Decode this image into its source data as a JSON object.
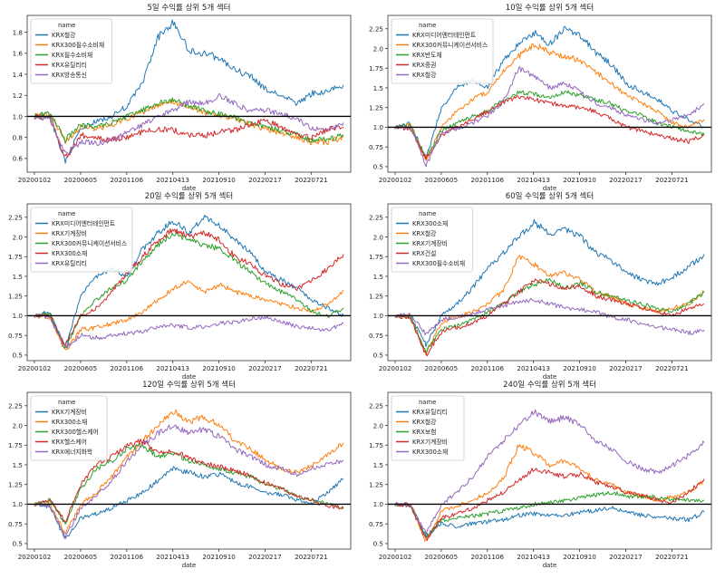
{
  "chart_data": [
    {
      "type": "line",
      "title": "5일 수익률 상위 5개 섹터",
      "xlabel": "date",
      "ylabel": "",
      "x_ticks": [
        "20200102",
        "20200605",
        "20201106",
        "20210413",
        "20210910",
        "20220217",
        "20220721"
      ],
      "y_ticks": [
        0.6,
        0.8,
        1.0,
        1.2,
        1.4,
        1.6,
        1.8
      ],
      "ylim": [
        0.47,
        1.96
      ],
      "reference_line": 1.0,
      "legend_title": "name",
      "legend_position": "top-left",
      "series": [
        {
          "name": "KRX철강",
          "color": "#1f77b4",
          "values": [
            1.0,
            1.0,
            0.57,
            0.88,
            0.95,
            1.0,
            1.1,
            1.32,
            1.75,
            1.9,
            1.62,
            1.6,
            1.55,
            1.44,
            1.38,
            1.25,
            1.2,
            1.12,
            1.22,
            1.24,
            1.3
          ]
        },
        {
          "name": "KRX300필수소비재",
          "color": "#ff7f0e",
          "values": [
            1.0,
            1.02,
            0.76,
            0.9,
            0.88,
            0.92,
            0.98,
            1.04,
            1.1,
            1.14,
            1.08,
            1.04,
            1.0,
            0.98,
            0.92,
            0.88,
            0.84,
            0.8,
            0.75,
            0.76,
            0.8
          ]
        },
        {
          "name": "KRX필수소비재",
          "color": "#2ca02c",
          "values": [
            1.0,
            1.03,
            0.78,
            0.92,
            0.9,
            0.94,
            1.0,
            1.06,
            1.12,
            1.16,
            1.1,
            1.05,
            1.02,
            0.99,
            0.93,
            0.9,
            0.86,
            0.82,
            0.77,
            0.78,
            0.82
          ]
        },
        {
          "name": "KRX유틸리티",
          "color": "#d62728",
          "values": [
            1.0,
            0.98,
            0.6,
            0.82,
            0.79,
            0.78,
            0.8,
            0.85,
            0.88,
            0.87,
            0.82,
            0.82,
            0.85,
            0.87,
            0.93,
            0.96,
            0.9,
            0.82,
            0.8,
            0.88,
            0.9
          ]
        },
        {
          "name": "KRX방송통신",
          "color": "#9467bd",
          "values": [
            1.0,
            0.98,
            0.64,
            0.76,
            0.74,
            0.78,
            0.84,
            0.92,
            1.0,
            1.06,
            1.14,
            1.12,
            1.2,
            1.12,
            1.05,
            1.06,
            1.02,
            0.98,
            0.88,
            0.86,
            0.94
          ]
        }
      ]
    },
    {
      "type": "line",
      "title": "10일 수익률 상위 5개 섹터",
      "xlabel": "date",
      "ylabel": "",
      "x_ticks": [
        "20200102",
        "20200605",
        "20201106",
        "20210413",
        "20210910",
        "20220217",
        "20220721"
      ],
      "y_ticks": [
        0.5,
        0.75,
        1.0,
        1.25,
        1.5,
        1.75,
        2.0,
        2.25
      ],
      "ylim": [
        0.43,
        2.42
      ],
      "reference_line": 1.0,
      "legend_title": "name",
      "legend_position": "top-left",
      "series": [
        {
          "name": "KRX미디어엔터테인먼트",
          "color": "#1f77b4",
          "values": [
            1.0,
            1.05,
            0.6,
            1.25,
            1.5,
            1.6,
            1.5,
            1.85,
            2.05,
            2.2,
            2.05,
            2.25,
            2.15,
            1.95,
            1.8,
            1.55,
            1.45,
            1.35,
            1.2,
            1.1,
            1.0
          ]
        },
        {
          "name": "KRX300커뮤니케이션서비스",
          "color": "#ff7f0e",
          "values": [
            1.0,
            1.03,
            0.58,
            1.0,
            1.2,
            1.35,
            1.45,
            1.7,
            1.9,
            2.05,
            1.95,
            1.9,
            1.85,
            1.7,
            1.55,
            1.4,
            1.3,
            1.2,
            1.05,
            1.0,
            1.1
          ]
        },
        {
          "name": "KRX반도체",
          "color": "#2ca02c",
          "values": [
            1.0,
            1.02,
            0.62,
            0.95,
            1.05,
            1.15,
            1.2,
            1.35,
            1.45,
            1.42,
            1.38,
            1.45,
            1.4,
            1.35,
            1.3,
            1.2,
            1.15,
            1.05,
            1.0,
            0.95,
            0.9
          ]
        },
        {
          "name": "KRX증권",
          "color": "#d62728",
          "values": [
            1.0,
            0.98,
            0.6,
            0.9,
            1.0,
            1.1,
            1.2,
            1.32,
            1.38,
            1.35,
            1.3,
            1.28,
            1.25,
            1.2,
            1.1,
            1.0,
            0.95,
            0.9,
            0.85,
            0.82,
            0.9
          ]
        },
        {
          "name": "KRX철강",
          "color": "#9467bd",
          "values": [
            1.0,
            1.0,
            0.52,
            0.92,
            0.98,
            1.05,
            1.15,
            1.32,
            1.75,
            1.65,
            1.5,
            1.55,
            1.45,
            1.3,
            1.25,
            1.15,
            1.1,
            1.05,
            1.1,
            1.15,
            1.3
          ]
        }
      ]
    },
    {
      "type": "line",
      "title": "20일 수익률 상위 5개 섹터",
      "xlabel": "date",
      "ylabel": "",
      "x_ticks": [
        "20200102",
        "20200605",
        "20201106",
        "20210413",
        "20210910",
        "20220217",
        "20220721"
      ],
      "y_ticks": [
        0.5,
        0.75,
        1.0,
        1.25,
        1.5,
        1.75,
        2.0,
        2.25
      ],
      "ylim": [
        0.43,
        2.42
      ],
      "reference_line": 1.0,
      "legend_title": "name",
      "legend_position": "top-left",
      "series": [
        {
          "name": "KRX미디어엔터테인먼트",
          "color": "#1f77b4",
          "values": [
            1.0,
            1.05,
            0.6,
            1.25,
            1.5,
            1.6,
            1.5,
            1.85,
            2.05,
            2.2,
            2.05,
            2.25,
            2.15,
            1.95,
            1.8,
            1.55,
            1.45,
            1.35,
            1.2,
            1.1,
            1.0
          ]
        },
        {
          "name": "KRX기계장비",
          "color": "#ff7f0e",
          "values": [
            1.0,
            0.97,
            0.55,
            0.82,
            0.85,
            0.9,
            0.95,
            1.05,
            1.2,
            1.35,
            1.45,
            1.3,
            1.4,
            1.3,
            1.25,
            1.2,
            1.15,
            1.1,
            1.05,
            1.15,
            1.32
          ]
        },
        {
          "name": "KRX300커뮤니케이션서비스",
          "color": "#2ca02c",
          "values": [
            1.0,
            1.03,
            0.58,
            1.0,
            1.2,
            1.35,
            1.45,
            1.7,
            1.9,
            2.05,
            1.95,
            1.9,
            1.85,
            1.7,
            1.55,
            1.4,
            1.3,
            1.2,
            1.05,
            1.0,
            1.1
          ]
        },
        {
          "name": "KRX300소재",
          "color": "#d62728",
          "values": [
            1.0,
            1.0,
            0.62,
            1.0,
            1.1,
            1.3,
            1.55,
            1.75,
            1.95,
            2.1,
            2.0,
            2.05,
            1.95,
            1.75,
            1.65,
            1.5,
            1.4,
            1.35,
            1.45,
            1.6,
            1.78
          ]
        },
        {
          "name": "KRX유틸리티",
          "color": "#9467bd",
          "values": [
            1.0,
            0.98,
            0.6,
            0.75,
            0.72,
            0.75,
            0.78,
            0.8,
            0.86,
            0.88,
            0.85,
            0.86,
            0.9,
            0.92,
            0.96,
            0.98,
            0.93,
            0.86,
            0.84,
            0.82,
            0.9
          ]
        }
      ]
    },
    {
      "type": "line",
      "title": "60일 수익률 상위 5개 섹터",
      "xlabel": "date",
      "ylabel": "",
      "x_ticks": [
        "20200102",
        "20200605",
        "20201106",
        "20210413",
        "20210910",
        "20220217",
        "20220721"
      ],
      "y_ticks": [
        0.5,
        0.75,
        1.0,
        1.25,
        1.5,
        1.75,
        2.0,
        2.25
      ],
      "ylim": [
        0.43,
        2.42
      ],
      "reference_line": 1.0,
      "legend_title": "name",
      "legend_position": "top-left",
      "series": [
        {
          "name": "KRX300소재",
          "color": "#1f77b4",
          "values": [
            1.0,
            1.0,
            0.62,
            1.0,
            1.15,
            1.35,
            1.6,
            1.8,
            2.0,
            2.18,
            2.05,
            2.1,
            2.0,
            1.8,
            1.7,
            1.55,
            1.45,
            1.4,
            1.5,
            1.62,
            1.78
          ]
        },
        {
          "name": "KRX철강",
          "color": "#ff7f0e",
          "values": [
            1.0,
            1.0,
            0.52,
            0.92,
            0.98,
            1.05,
            1.15,
            1.32,
            1.75,
            1.65,
            1.5,
            1.55,
            1.45,
            1.3,
            1.25,
            1.15,
            1.1,
            1.05,
            1.1,
            1.15,
            1.3
          ]
        },
        {
          "name": "KRX기계장비",
          "color": "#2ca02c",
          "values": [
            1.0,
            0.97,
            0.55,
            0.82,
            0.88,
            0.95,
            1.05,
            1.15,
            1.3,
            1.4,
            1.45,
            1.35,
            1.42,
            1.3,
            1.25,
            1.2,
            1.15,
            1.08,
            1.05,
            1.15,
            1.3
          ]
        },
        {
          "name": "KRX건설",
          "color": "#d62728",
          "values": [
            1.0,
            0.96,
            0.5,
            0.8,
            0.85,
            0.9,
            1.0,
            1.15,
            1.3,
            1.45,
            1.4,
            1.35,
            1.38,
            1.25,
            1.2,
            1.15,
            1.1,
            1.05,
            1.0,
            1.1,
            1.15
          ]
        },
        {
          "name": "KRX300필수소비재",
          "color": "#9467bd",
          "values": [
            1.0,
            1.02,
            0.76,
            0.95,
            0.98,
            1.02,
            1.08,
            1.12,
            1.18,
            1.2,
            1.15,
            1.1,
            1.08,
            1.05,
            0.98,
            0.95,
            0.9,
            0.86,
            0.82,
            0.78,
            0.82
          ]
        }
      ]
    },
    {
      "type": "line",
      "title": "120일 수익률 상위 5개 섹터",
      "xlabel": "date",
      "ylabel": "",
      "x_ticks": [
        "20200102",
        "20200605",
        "20201106",
        "20210413",
        "20210910",
        "20220217",
        "20220721"
      ],
      "y_ticks": [
        0.5,
        0.75,
        1.0,
        1.25,
        1.5,
        1.75,
        2.0,
        2.25
      ],
      "ylim": [
        0.43,
        2.42
      ],
      "reference_line": 1.0,
      "legend_title": "name",
      "legend_position": "top-left",
      "series": [
        {
          "name": "KRX기계장비",
          "color": "#1f77b4",
          "values": [
            1.0,
            0.97,
            0.55,
            0.82,
            0.88,
            0.95,
            1.05,
            1.15,
            1.3,
            1.45,
            1.4,
            1.35,
            1.38,
            1.28,
            1.22,
            1.15,
            1.12,
            1.05,
            1.02,
            1.15,
            1.32
          ]
        },
        {
          "name": "KRX300소재",
          "color": "#ff7f0e",
          "values": [
            1.0,
            1.0,
            0.62,
            1.0,
            1.15,
            1.35,
            1.6,
            1.8,
            2.0,
            2.18,
            2.05,
            2.1,
            2.0,
            1.8,
            1.7,
            1.55,
            1.45,
            1.4,
            1.5,
            1.62,
            1.78
          ]
        },
        {
          "name": "KRX300헬스케어",
          "color": "#2ca02c",
          "values": [
            1.0,
            1.05,
            0.75,
            1.2,
            1.45,
            1.55,
            1.7,
            1.75,
            1.6,
            1.65,
            1.55,
            1.5,
            1.45,
            1.4,
            1.35,
            1.25,
            1.2,
            1.1,
            1.05,
            1.0,
            0.96
          ]
        },
        {
          "name": "KRX헬스케어",
          "color": "#d62728",
          "values": [
            1.0,
            1.06,
            0.78,
            1.25,
            1.5,
            1.6,
            1.75,
            1.8,
            1.65,
            1.68,
            1.58,
            1.52,
            1.48,
            1.42,
            1.36,
            1.26,
            1.2,
            1.1,
            1.04,
            0.98,
            0.95
          ]
        },
        {
          "name": "KRX에너지화학",
          "color": "#9467bd",
          "values": [
            1.0,
            0.98,
            0.58,
            0.95,
            1.1,
            1.3,
            1.55,
            1.75,
            1.9,
            2.0,
            1.9,
            1.95,
            1.85,
            1.7,
            1.6,
            1.5,
            1.45,
            1.38,
            1.45,
            1.5,
            1.55
          ]
        }
      ]
    },
    {
      "type": "line",
      "title": "240일 수익률 상위 5개 섹터",
      "xlabel": "date",
      "ylabel": "",
      "x_ticks": [
        "20200102",
        "20200605",
        "20201106",
        "20210413",
        "20210910",
        "20220217",
        "20220721"
      ],
      "y_ticks": [
        0.5,
        0.75,
        1.0,
        1.25,
        1.5,
        1.75,
        2.0,
        2.25
      ],
      "ylim": [
        0.43,
        2.42
      ],
      "reference_line": 1.0,
      "legend_title": "name",
      "legend_position": "top-left",
      "series": [
        {
          "name": "KRX유틸리티",
          "color": "#1f77b4",
          "values": [
            1.0,
            0.98,
            0.6,
            0.75,
            0.72,
            0.75,
            0.78,
            0.8,
            0.86,
            0.88,
            0.85,
            0.86,
            0.9,
            0.92,
            0.96,
            0.9,
            0.86,
            0.84,
            0.82,
            0.8,
            0.9
          ]
        },
        {
          "name": "KRX철강",
          "color": "#ff7f0e",
          "values": [
            1.0,
            1.0,
            0.52,
            0.92,
            0.98,
            1.05,
            1.15,
            1.32,
            1.75,
            1.65,
            1.5,
            1.55,
            1.45,
            1.3,
            1.25,
            1.15,
            1.1,
            1.05,
            1.1,
            1.15,
            1.3
          ]
        },
        {
          "name": "KRX보험",
          "color": "#2ca02c",
          "values": [
            1.0,
            0.98,
            0.58,
            0.8,
            0.82,
            0.85,
            0.88,
            0.92,
            0.95,
            1.0,
            1.02,
            1.05,
            1.08,
            1.12,
            1.15,
            1.1,
            1.1,
            1.08,
            1.06,
            1.05,
            1.05
          ]
        },
        {
          "name": "KRX기계장비",
          "color": "#d62728",
          "values": [
            1.0,
            0.97,
            0.55,
            0.82,
            0.88,
            0.95,
            1.05,
            1.15,
            1.3,
            1.45,
            1.4,
            1.35,
            1.38,
            1.28,
            1.22,
            1.15,
            1.12,
            1.05,
            1.02,
            1.15,
            1.32
          ]
        },
        {
          "name": "KRX300소재",
          "color": "#9467bd",
          "values": [
            1.0,
            1.0,
            0.62,
            1.0,
            1.15,
            1.35,
            1.6,
            1.8,
            2.0,
            2.18,
            2.05,
            2.1,
            2.0,
            1.8,
            1.7,
            1.55,
            1.45,
            1.4,
            1.5,
            1.62,
            1.78
          ]
        }
      ]
    }
  ]
}
